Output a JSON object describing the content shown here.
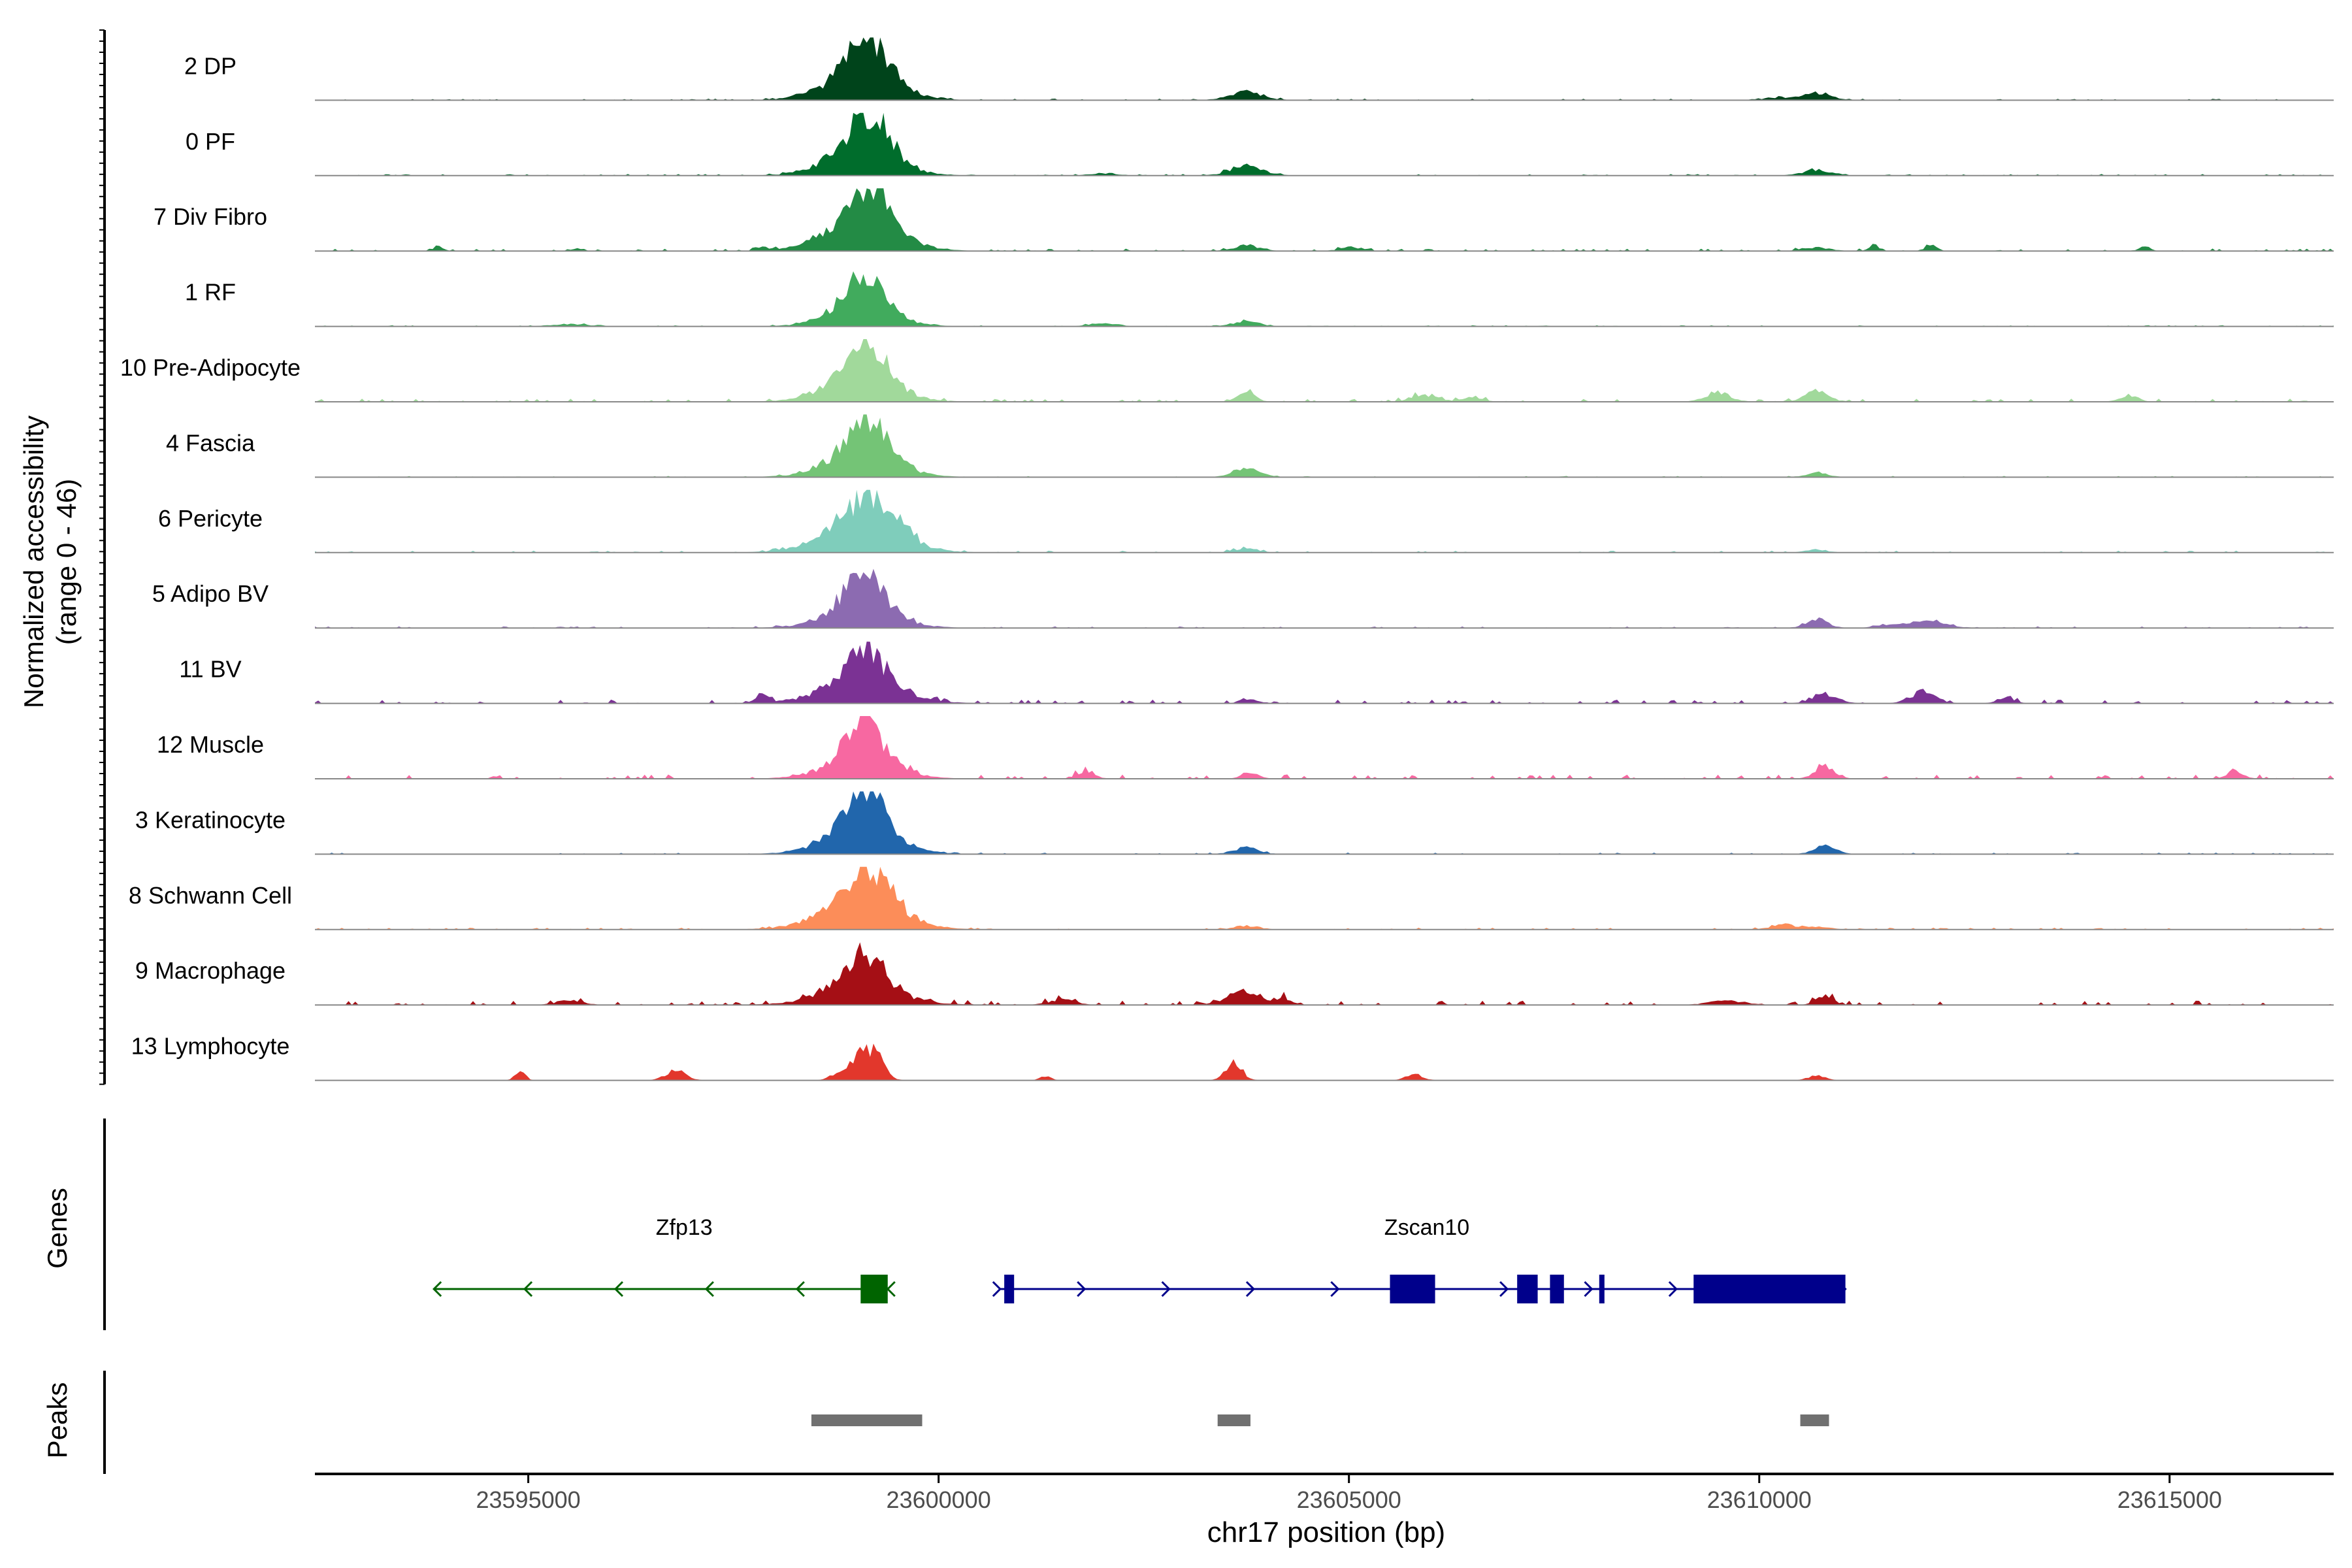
{
  "chart_data": {
    "type": "area",
    "title": "",
    "xlabel": "chr17 position (bp)",
    "ylabel_line1": "Normalized accessibility",
    "ylabel_line2": "(range 0 - 46)",
    "y_range": [
      0,
      46
    ],
    "xlim": [
      23592400,
      23617000
    ],
    "x_ticks": [
      23595000,
      23600000,
      23605000,
      23610000,
      23615000
    ],
    "x_tick_labels": [
      "23595000",
      "23600000",
      "23605000",
      "23610000",
      "23615000"
    ],
    "genes_label": "Genes",
    "peaks_label": "Peaks",
    "tracks": [
      {
        "name": "2 DP",
        "color": "#00441b",
        "peaks": [
          [
            23599150,
            0.82,
            220
          ],
          [
            23599050,
            0.55,
            420
          ],
          [
            23603750,
            0.18,
            200
          ],
          [
            23610700,
            0.15,
            180
          ],
          [
            23610250,
            0.05,
            200
          ]
        ],
        "noise": 0.025
      },
      {
        "name": "0 PF",
        "color": "#006d2c",
        "peaks": [
          [
            23599150,
            0.86,
            230
          ],
          [
            23599050,
            0.5,
            420
          ],
          [
            23603750,
            0.2,
            200
          ],
          [
            23610700,
            0.12,
            170
          ],
          [
            23602000,
            0.05,
            150
          ]
        ],
        "noise": 0.025
      },
      {
        "name": "7 Div Fibro",
        "color": "#238b45",
        "peaks": [
          [
            23599150,
            0.84,
            240
          ],
          [
            23599050,
            0.52,
            450
          ],
          [
            23593900,
            0.1,
            60
          ],
          [
            23595600,
            0.06,
            60
          ],
          [
            23597850,
            0.08,
            60
          ],
          [
            23603750,
            0.12,
            150
          ],
          [
            23605000,
            0.08,
            120
          ],
          [
            23610700,
            0.08,
            150
          ],
          [
            23611400,
            0.12,
            60
          ],
          [
            23612100,
            0.15,
            60
          ],
          [
            23614700,
            0.1,
            60
          ]
        ],
        "noise": 0.04
      },
      {
        "name": "1 RF",
        "color": "#41ab5d",
        "peaks": [
          [
            23599100,
            0.7,
            200
          ],
          [
            23599050,
            0.45,
            380
          ],
          [
            23603750,
            0.12,
            150
          ],
          [
            23602000,
            0.07,
            150
          ],
          [
            23595500,
            0.05,
            200
          ]
        ],
        "noise": 0.02
      },
      {
        "name": "10 Pre-Adipocyte",
        "color": "#a1d99b",
        "peaks": [
          [
            23599100,
            0.8,
            230
          ],
          [
            23599050,
            0.45,
            430
          ],
          [
            23603750,
            0.25,
            100
          ],
          [
            23605900,
            0.15,
            150
          ],
          [
            23609500,
            0.2,
            150
          ],
          [
            23610700,
            0.2,
            150
          ],
          [
            23614500,
            0.15,
            100
          ],
          [
            23606500,
            0.1,
            120
          ]
        ],
        "noise": 0.05
      },
      {
        "name": "4 Fascia",
        "color": "#74c476",
        "peaks": [
          [
            23599150,
            0.75,
            230
          ],
          [
            23599050,
            0.45,
            430
          ],
          [
            23603750,
            0.18,
            160
          ],
          [
            23610700,
            0.1,
            130
          ]
        ],
        "noise": 0.02
      },
      {
        "name": "6 Pericyte",
        "color": "#7fcdbb",
        "peaks": [
          [
            23599200,
            0.78,
            280
          ],
          [
            23599050,
            0.5,
            480
          ],
          [
            23603750,
            0.1,
            130
          ],
          [
            23610700,
            0.06,
            130
          ]
        ],
        "noise": 0.03
      },
      {
        "name": "5 Adipo BV",
        "color": "#8c6bb1",
        "peaks": [
          [
            23599100,
            0.7,
            230
          ],
          [
            23599050,
            0.4,
            420
          ],
          [
            23610700,
            0.18,
            130
          ],
          [
            23612100,
            0.14,
            200
          ],
          [
            23611600,
            0.08,
            150
          ]
        ],
        "noise": 0.025
      },
      {
        "name": "11 BV",
        "color": "#7b3294",
        "peaks": [
          [
            23599100,
            0.72,
            250
          ],
          [
            23599050,
            0.4,
            480
          ],
          [
            23597850,
            0.15,
            80
          ],
          [
            23610800,
            0.2,
            150
          ],
          [
            23612000,
            0.25,
            150
          ],
          [
            23613000,
            0.12,
            100
          ],
          [
            23603800,
            0.1,
            100
          ]
        ],
        "noise": 0.06
      },
      {
        "name": "12 Muscle",
        "color": "#f768a1",
        "peaks": [
          [
            23599100,
            0.9,
            200
          ],
          [
            23599050,
            0.4,
            420
          ],
          [
            23610800,
            0.25,
            120
          ],
          [
            23615800,
            0.15,
            100
          ],
          [
            23601800,
            0.18,
            100
          ],
          [
            23603800,
            0.12,
            100
          ]
        ],
        "noise": 0.07
      },
      {
        "name": "3 Keratinocyte",
        "color": "#2166ac",
        "peaks": [
          [
            23599100,
            0.85,
            230
          ],
          [
            23599050,
            0.5,
            430
          ],
          [
            23603750,
            0.15,
            150
          ],
          [
            23610800,
            0.18,
            130
          ]
        ],
        "noise": 0.025
      },
      {
        "name": "8 Schwann Cell",
        "color": "#fc8d59",
        "peaks": [
          [
            23599150,
            0.85,
            260
          ],
          [
            23599050,
            0.5,
            470
          ],
          [
            23603750,
            0.08,
            150
          ],
          [
            23610300,
            0.1,
            150
          ],
          [
            23610700,
            0.06,
            150
          ]
        ],
        "noise": 0.03
      },
      {
        "name": "9 Macrophage",
        "color": "#a50f15",
        "peaks": [
          [
            23599100,
            0.7,
            230
          ],
          [
            23599050,
            0.35,
            480
          ],
          [
            23603700,
            0.25,
            200
          ],
          [
            23604200,
            0.15,
            100
          ],
          [
            23610800,
            0.2,
            100
          ],
          [
            23601500,
            0.12,
            150
          ],
          [
            23595500,
            0.1,
            150
          ],
          [
            23609600,
            0.1,
            200
          ]
        ],
        "noise": 0.07
      },
      {
        "name": "13 Lymphocyte",
        "color": "#e2372c",
        "peaks": [
          [
            23599200,
            0.6,
            120
          ],
          [
            23599000,
            0.3,
            100
          ],
          [
            23603600,
            0.35,
            100
          ],
          [
            23594900,
            0.2,
            60
          ],
          [
            23596800,
            0.2,
            120
          ],
          [
            23598800,
            0.18,
            100
          ],
          [
            23605800,
            0.12,
            100
          ],
          [
            23610700,
            0.1,
            100
          ],
          [
            23601300,
            0.1,
            60
          ]
        ],
        "noise": 0.0
      }
    ],
    "genes": [
      {
        "name": "Zfp13",
        "label_x": 23596900,
        "strand": "-",
        "start": 23593850,
        "end": 23599380,
        "color": "#006400",
        "exons": [
          [
            23599050,
            23599380
          ]
        ]
      },
      {
        "name": "Zscan10",
        "label_x": 23605950,
        "strand": "+",
        "start": 23600750,
        "end": 23611050,
        "color": "#00008b",
        "exons": [
          [
            23600800,
            23600920
          ],
          [
            23605500,
            23606050
          ],
          [
            23607050,
            23607300
          ],
          [
            23607450,
            23607620
          ],
          [
            23608050,
            23608100
          ],
          [
            23609200,
            23611050
          ]
        ]
      }
    ],
    "peak_regions": [
      [
        23598450,
        23599800
      ],
      [
        23603400,
        23603800
      ],
      [
        23610500,
        23610850
      ]
    ]
  }
}
